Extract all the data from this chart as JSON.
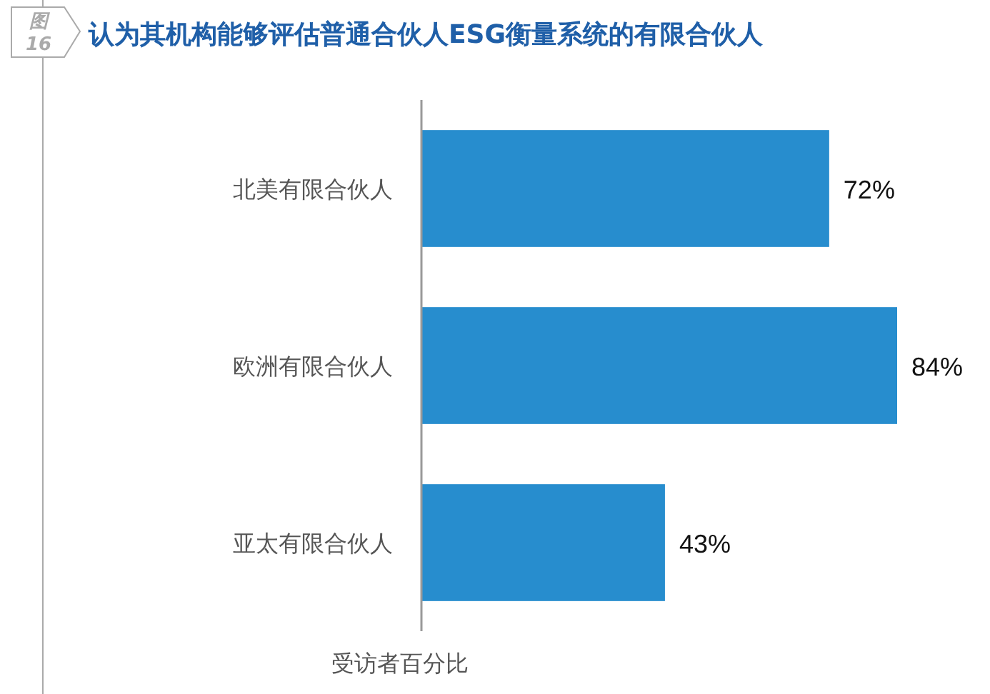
{
  "chart_data": {
    "type": "bar",
    "orientation": "horizontal",
    "title": "认为其机构能够评估普通合伙人ESG衡量系统的有限合伙人",
    "xlabel": "受访者百分比",
    "annotations": [
      "图 16"
    ],
    "categories": [
      "北美有限合伙人",
      "欧洲有限合伙人",
      "亚太有限合伙人"
    ],
    "values": [
      72,
      84,
      43
    ],
    "value_labels": [
      "72%",
      "84%",
      "43%"
    ],
    "color": "#278dce"
  }
}
